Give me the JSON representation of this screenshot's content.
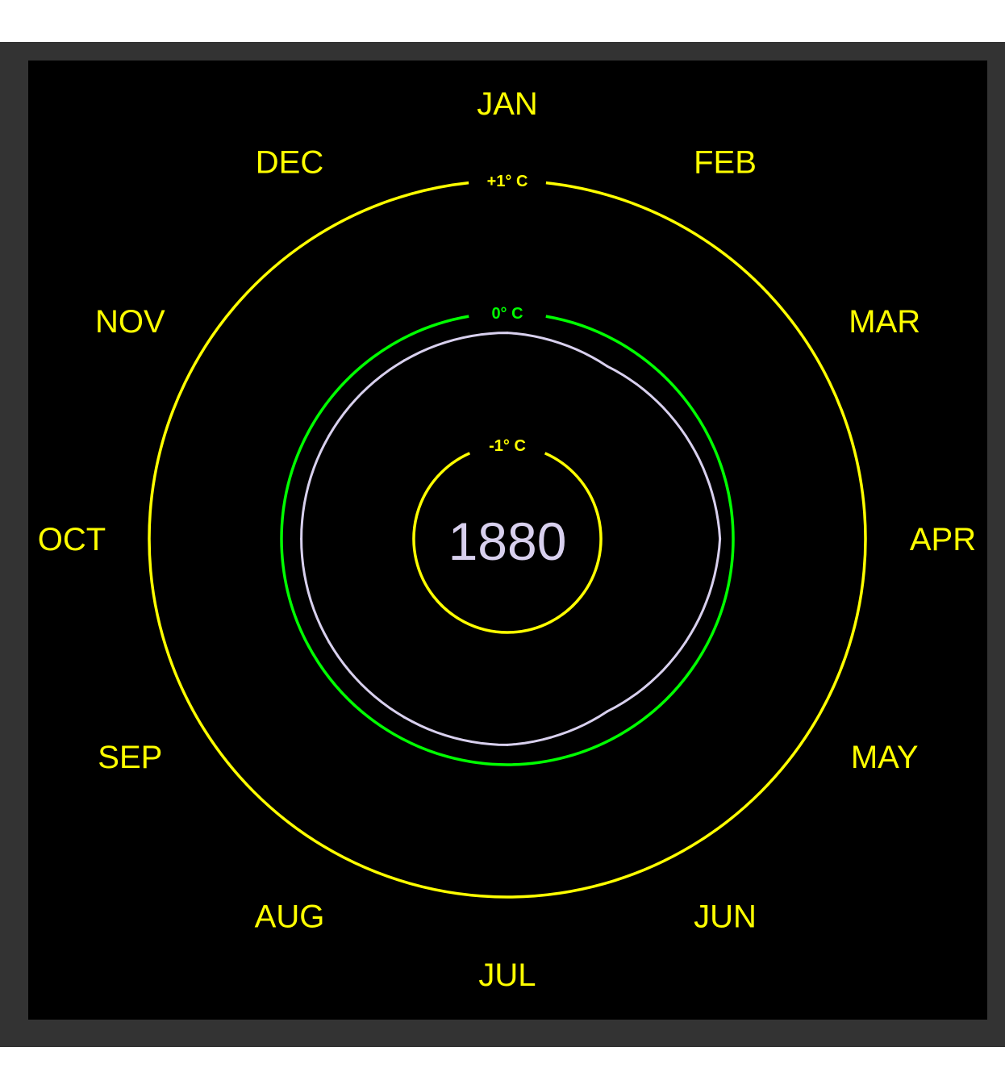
{
  "chart_data": {
    "type": "line",
    "subtype": "polar-spiral",
    "year": "1880",
    "months": [
      "JAN",
      "FEB",
      "MAR",
      "APR",
      "MAY",
      "JUN",
      "JUL",
      "AUG",
      "SEP",
      "OCT",
      "NOV",
      "DEC"
    ],
    "rings": [
      {
        "value": 1,
        "label": "+1° C",
        "color": "#ffff00"
      },
      {
        "value": 0,
        "label": "0° C",
        "color": "#00ff00"
      },
      {
        "value": -1,
        "label": "-1° C",
        "color": "#ffff00"
      }
    ],
    "series": [
      {
        "values": [
          -0.15,
          -0.2,
          -0.15,
          -0.1,
          -0.15,
          -0.2,
          -0.15,
          -0.15,
          -0.15,
          -0.15,
          -0.15,
          -0.15
        ],
        "color": "#d8d0ee"
      }
    ],
    "rlim": [
      -1.7,
      1.7
    ],
    "colors": {
      "month_labels": "#ffff00",
      "year": "#d8d0ee",
      "background": "#000000",
      "frame": "#333333"
    }
  }
}
